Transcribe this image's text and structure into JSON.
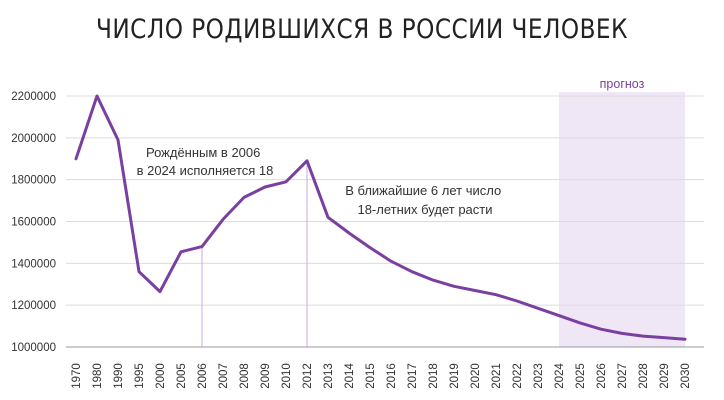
{
  "chart_data": {
    "type": "line",
    "title": "ЧИСЛО РОДИВШИХСЯ В РОССИИ ЧЕЛОВЕК",
    "xlabel": "",
    "ylabel": "",
    "categories": [
      "1970",
      "1980",
      "1990",
      "1995",
      "2000",
      "2005",
      "2006",
      "2007",
      "2008",
      "2009",
      "2010",
      "2012",
      "2013",
      "2014",
      "2015",
      "2016",
      "2017",
      "2018",
      "2019",
      "2020",
      "2021",
      "2022",
      "2023",
      "2024",
      "2025",
      "2026",
      "2027",
      "2028",
      "2029",
      "2030"
    ],
    "series": [
      {
        "values": [
          1900000,
          2200000,
          1990000,
          1360000,
          1265000,
          1455000,
          1480000,
          1610000,
          1715000,
          1765000,
          1790000,
          1890000,
          1620000,
          1545000,
          1475000,
          1410000,
          1360000,
          1320000,
          1290000,
          1270000,
          1250000,
          1220000,
          1185000,
          1150000,
          1115000,
          1085000,
          1065000,
          1052000,
          1045000,
          1037000
        ]
      }
    ],
    "ylim": [
      1000000,
      2200000
    ],
    "yticks": [
      1000000,
      1200000,
      1400000,
      1600000,
      1800000,
      2000000,
      2200000
    ],
    "ytick_labels": [
      "1000000",
      "1200000",
      "1400000",
      "1600000",
      "1800000",
      "2000000",
      "2200000"
    ],
    "grid": true,
    "line_color": "#7b3fa0",
    "forecast": {
      "label": "прогноз",
      "from": "2024",
      "to": "2030",
      "color": "#efe7f6"
    },
    "markers": [
      "2006",
      "2012"
    ],
    "annotations": [
      {
        "lines": [
          "Рождённым в 2006",
          "в 2024 исполняется 18"
        ]
      },
      {
        "lines": [
          "В ближайшие 6 лет число",
          "18-летних будет расти"
        ]
      }
    ]
  }
}
